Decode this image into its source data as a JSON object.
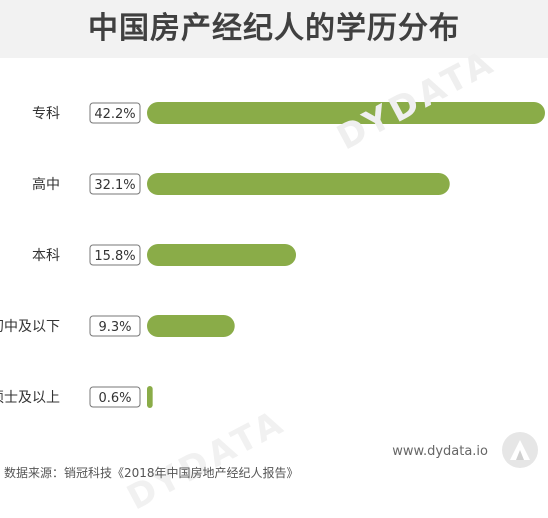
{
  "header": {
    "title": "中国房产经纪人的学历分布"
  },
  "chart_data": {
    "type": "bar",
    "orientation": "horizontal",
    "title": "中国房产经纪人的学历分布",
    "categories": [
      "专科",
      "高中",
      "本科",
      "初中及以下",
      "硕士及以上"
    ],
    "values": [
      42.2,
      32.1,
      15.8,
      9.3,
      0.6
    ],
    "value_labels": [
      "42.2%",
      "32.1%",
      "15.8%",
      "9.3%",
      "0.6%"
    ],
    "bar_color": "#8aac48",
    "label_border_color": "#777777",
    "grid": false,
    "legend": "none"
  },
  "footer": {
    "website": "www.dydata.io",
    "source": "数据来源：销冠科技《2018年中国房地产经纪人报告》"
  }
}
